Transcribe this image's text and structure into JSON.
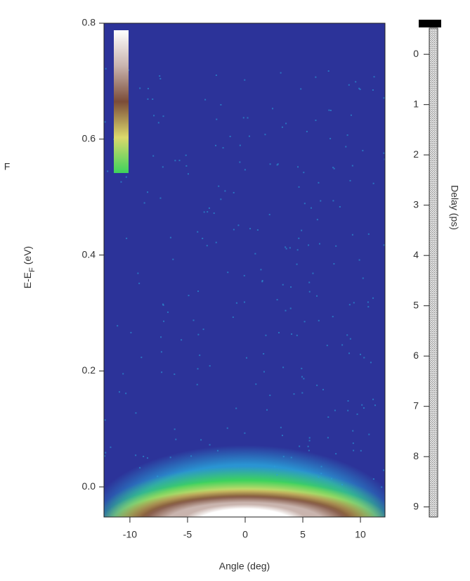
{
  "chart_data": {
    "type": "heatmap",
    "ylabel_parts": [
      "E-E",
      "F",
      " (eV)"
    ],
    "xlabel": "Angle (deg)",
    "xlim": [
      -12.25,
      12.13
    ],
    "xticks": [
      -10,
      -5,
      0,
      5,
      10
    ],
    "ylim": [
      -0.052,
      0.8
    ],
    "yticks": [
      {
        "value": 0,
        "label": "0.0"
      },
      0.2,
      0.4,
      0.6,
      0.8
    ],
    "colormap": [
      "#2c3399",
      "#2a9fd8",
      "#3dd35c",
      "#dcd96c",
      "#7b4c38",
      "#c9b4ae",
      "#ffffff"
    ],
    "delay_label": "Delay (ps)",
    "y2lim": [
      -0.52,
      9.2
    ],
    "y2ticks": [
      0,
      1,
      2,
      3,
      4,
      5,
      6,
      7,
      8,
      9
    ],
    "side_fragment": "F"
  }
}
